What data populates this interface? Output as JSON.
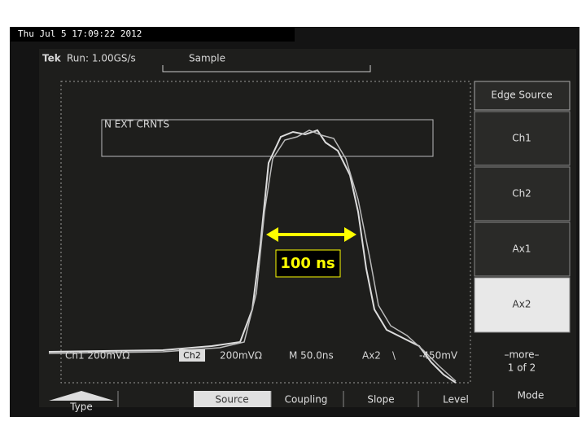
{
  "header": {
    "timestamp": "Thu Jul  5  17:09:22  2012"
  },
  "status_bar": {
    "brand": "Tek",
    "run": "Run: 1.00GS/s",
    "mode": "Sample"
  },
  "annotation_box": "N EXT CRNTS",
  "measurement_label": "100 ns",
  "side_menu": {
    "title": "Edge Source",
    "items": [
      "Ch1",
      "Ch2",
      "Ax1",
      "Ax2"
    ],
    "more": "–more–",
    "page": "1 of 2"
  },
  "readout": {
    "ch1": "Ch1  200mVΩ",
    "ch2": "Ch2",
    "ch2_scale": "200mVΩ",
    "timebase": "M 50.0ns",
    "trigger_source": "Ax2",
    "trigger_slope": "\\",
    "trigger_level": "-450mV"
  },
  "bottom_menu": [
    "Type",
    "Source",
    "Coupling",
    "Slope",
    "Level",
    "Mode"
  ]
}
